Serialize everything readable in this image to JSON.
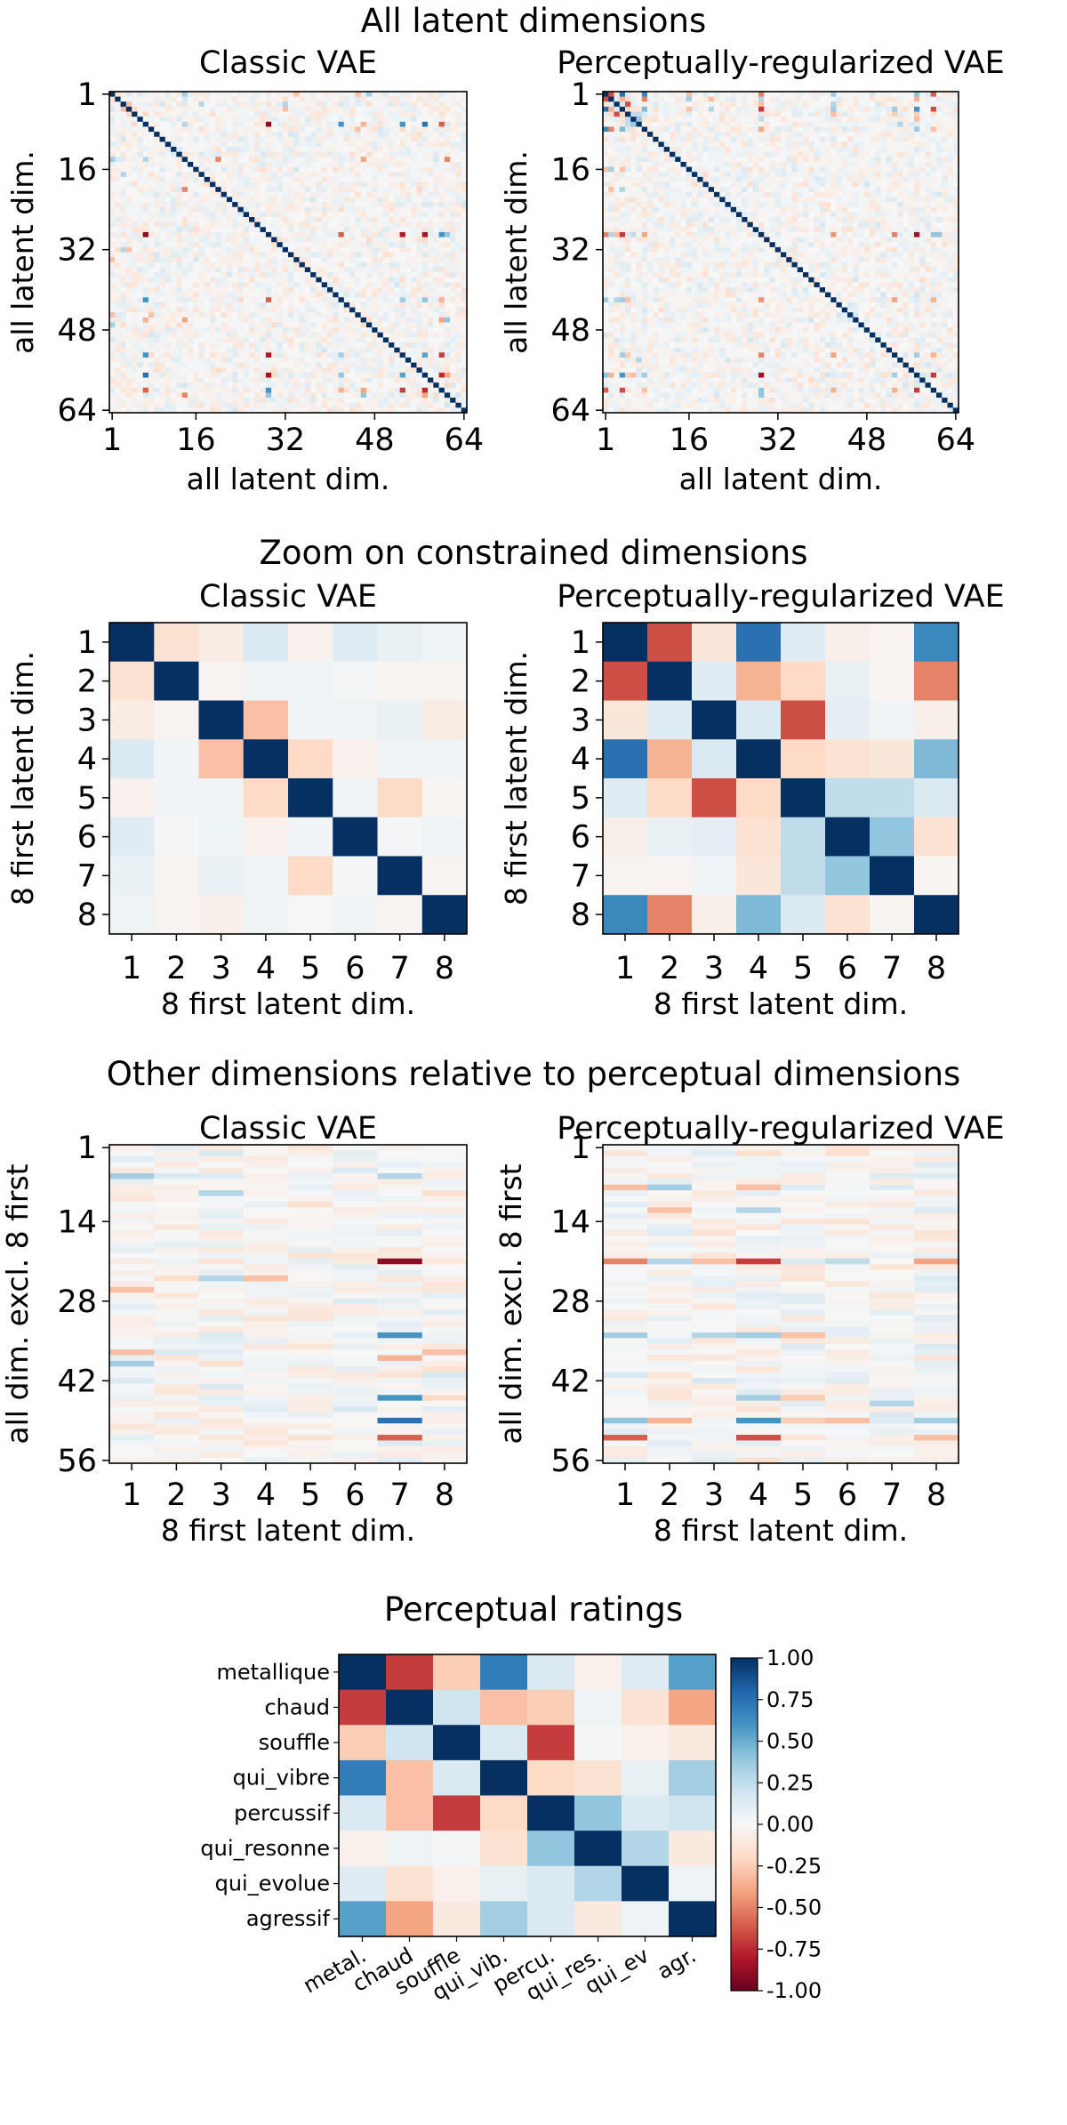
{
  "colormap": {
    "name": "RdBu",
    "min": -1,
    "max": 1,
    "stops": [
      "#67001f",
      "#b2182b",
      "#d6604d",
      "#f4a582",
      "#fddbc7",
      "#f7f7f7",
      "#d1e5f0",
      "#92c5de",
      "#4393c3",
      "#2166ac",
      "#053061"
    ]
  },
  "chart_data": [
    {
      "type": "heatmap",
      "title": "All latent dimensions",
      "panels": [
        {
          "title": "Classic VAE",
          "xlabel": "all latent dim.",
          "ylabel": "all latent dim.",
          "xticks": [
            "1",
            "16",
            "32",
            "48",
            "64"
          ],
          "yticks": [
            "1",
            "16",
            "32",
            "48",
            "64"
          ],
          "rows": 64,
          "cols": 64,
          "diagonal": 1,
          "notable_entries": [
            [
              29,
              42,
              -0.6
            ],
            [
              29,
              53,
              -0.8
            ],
            [
              29,
              57,
              -0.85
            ],
            [
              29,
              60,
              0.6
            ],
            [
              29,
              61,
              0.4
            ],
            [
              14,
              20,
              -0.5
            ],
            [
              14,
              46,
              -0.4
            ],
            [
              14,
              61,
              -0.5
            ],
            [
              20,
              14,
              -0.5
            ],
            [
              42,
              53,
              0.35
            ],
            [
              42,
              57,
              0.4
            ],
            [
              42,
              60,
              -0.35
            ],
            [
              46,
              60,
              -0.4
            ],
            [
              46,
              61,
              0.4
            ],
            [
              53,
              57,
              0.55
            ],
            [
              53,
              60,
              -0.7
            ],
            [
              57,
              60,
              -0.75
            ],
            [
              57,
              61,
              -0.4
            ]
          ]
        },
        {
          "title": "Perceptually-regularized VAE",
          "xlabel": "all latent dim.",
          "ylabel": "all latent dim.",
          "xticks": [
            "1",
            "16",
            "32",
            "48",
            "64"
          ],
          "yticks": [
            "1",
            "16",
            "32",
            "48",
            "64"
          ],
          "rows": 64,
          "cols": 64,
          "diagonal": 1,
          "notable_entries": [
            [
              29,
              42,
              -0.45
            ],
            [
              29,
              53,
              -0.6
            ],
            [
              29,
              57,
              -0.85
            ],
            [
              29,
              60,
              0.4
            ],
            [
              29,
              61,
              0.4
            ],
            [
              42,
              60,
              -0.35
            ],
            [
              53,
              57,
              0.35
            ],
            [
              53,
              60,
              -0.35
            ],
            [
              57,
              60,
              -0.6
            ],
            [
              53,
              29,
              -0.5
            ],
            [
              42,
              53,
              -0.4
            ],
            [
              57,
              60,
              -0.7
            ]
          ]
        }
      ]
    },
    {
      "type": "heatmap",
      "title": "Zoom on constrained dimensions",
      "panels": [
        {
          "title": "Classic VAE",
          "xlabel": "8 first latent dim.",
          "ylabel": "8 first latent dim.",
          "xticks": [
            "1",
            "2",
            "3",
            "4",
            "5",
            "6",
            "7",
            "8"
          ],
          "yticks": [
            "1",
            "2",
            "3",
            "4",
            "5",
            "6",
            "7",
            "8"
          ],
          "values": [
            [
              1,
              -0.15,
              -0.08,
              0.15,
              -0.04,
              0.12,
              0.07,
              0.05
            ],
            [
              -0.15,
              1,
              -0.03,
              0.03,
              0.03,
              0.02,
              -0.03,
              -0.03
            ],
            [
              -0.08,
              -0.03,
              1,
              -0.3,
              0.03,
              0.05,
              0.07,
              -0.08
            ],
            [
              0.15,
              0.03,
              -0.3,
              1,
              -0.2,
              -0.04,
              0.05,
              0.03
            ],
            [
              -0.04,
              0.03,
              0.03,
              -0.2,
              1,
              0.03,
              -0.2,
              -0.02
            ],
            [
              0.12,
              0.02,
              0.05,
              -0.04,
              0.03,
              1,
              0.02,
              0.05
            ],
            [
              0.07,
              -0.03,
              0.07,
              0.05,
              -0.2,
              0.02,
              1,
              -0.03
            ],
            [
              0.05,
              -0.03,
              -0.06,
              0.05,
              0.01,
              0.05,
              -0.03,
              1
            ]
          ]
        },
        {
          "title": "Perceptually-regularized VAE",
          "xlabel": "8 first latent dim.",
          "ylabel": "8 first latent dim.",
          "xticks": [
            "1",
            "2",
            "3",
            "4",
            "5",
            "6",
            "7",
            "8"
          ],
          "yticks": [
            "1",
            "2",
            "3",
            "4",
            "5",
            "6",
            "7",
            "8"
          ],
          "values": [
            [
              1,
              -0.65,
              -0.12,
              0.75,
              0.12,
              -0.06,
              -0.03,
              0.65
            ],
            [
              -0.65,
              1,
              0.12,
              -0.35,
              -0.2,
              0.08,
              -0.03,
              -0.5
            ],
            [
              -0.12,
              0.12,
              1,
              0.15,
              -0.65,
              0.1,
              0.03,
              -0.06
            ],
            [
              0.75,
              -0.35,
              0.15,
              1,
              -0.2,
              -0.15,
              -0.12,
              0.45
            ],
            [
              0.12,
              -0.2,
              -0.65,
              -0.2,
              1,
              0.25,
              0.25,
              0.15
            ],
            [
              -0.06,
              0.08,
              0.1,
              -0.15,
              0.25,
              1,
              0.4,
              -0.15
            ],
            [
              -0.03,
              -0.03,
              0.03,
              -0.12,
              0.25,
              0.4,
              1,
              -0.02
            ],
            [
              0.65,
              -0.5,
              -0.06,
              0.45,
              0.15,
              -0.15,
              -0.02,
              1
            ]
          ]
        }
      ]
    },
    {
      "type": "heatmap",
      "title": "Other dimensions relative to perceptual dimensions",
      "panels": [
        {
          "title": "Classic VAE",
          "xlabel": "8 first latent dim.",
          "ylabel": "all dim. excl. 8 first",
          "xticks": [
            "1",
            "2",
            "3",
            "4",
            "5",
            "6",
            "7",
            "8"
          ],
          "yticks": [
            "1",
            "14",
            "28",
            "42",
            "56"
          ],
          "rows": 56,
          "cols": 8,
          "notable_entries": [
            [
              6,
              1,
              0.35
            ],
            [
              6,
              7,
              0.3
            ],
            [
              9,
              3,
              0.3
            ],
            [
              21,
              7,
              -0.9
            ],
            [
              34,
              7,
              0.6
            ],
            [
              37,
              1,
              -0.3
            ],
            [
              37,
              8,
              -0.3
            ],
            [
              38,
              7,
              -0.35
            ],
            [
              39,
              1,
              0.35
            ],
            [
              45,
              7,
              0.6
            ],
            [
              49,
              7,
              0.75
            ],
            [
              52,
              7,
              -0.6
            ],
            [
              24,
              3,
              0.3
            ],
            [
              24,
              4,
              -0.3
            ],
            [
              26,
              1,
              -0.3
            ]
          ]
        },
        {
          "title": "Perceptually-regularized VAE",
          "xlabel": "8 first latent dim.",
          "ylabel": "all dim. excl. 8 first",
          "xticks": [
            "1",
            "2",
            "3",
            "4",
            "5",
            "6",
            "7",
            "8"
          ],
          "yticks": [
            "1",
            "14",
            "28",
            "42",
            "56"
          ],
          "rows": 56,
          "cols": 8,
          "notable_entries": [
            [
              8,
              1,
              -0.3
            ],
            [
              8,
              2,
              0.35
            ],
            [
              8,
              4,
              -0.3
            ],
            [
              12,
              2,
              -0.3
            ],
            [
              12,
              4,
              0.3
            ],
            [
              21,
              1,
              -0.5
            ],
            [
              21,
              2,
              0.3
            ],
            [
              21,
              3,
              -0.3
            ],
            [
              21,
              4,
              -0.7
            ],
            [
              21,
              5,
              0.15
            ],
            [
              21,
              6,
              0.25
            ],
            [
              21,
              8,
              -0.4
            ],
            [
              34,
              1,
              0.35
            ],
            [
              34,
              3,
              0.3
            ],
            [
              34,
              4,
              0.35
            ],
            [
              34,
              5,
              -0.3
            ],
            [
              45,
              4,
              0.35
            ],
            [
              45,
              5,
              -0.25
            ],
            [
              46,
              7,
              0.3
            ],
            [
              49,
              1,
              0.4
            ],
            [
              49,
              2,
              -0.35
            ],
            [
              49,
              4,
              0.6
            ],
            [
              49,
              5,
              -0.25
            ],
            [
              49,
              6,
              -0.3
            ],
            [
              49,
              8,
              0.35
            ],
            [
              52,
              1,
              -0.6
            ],
            [
              52,
              4,
              -0.65
            ],
            [
              52,
              8,
              -0.3
            ]
          ]
        }
      ]
    },
    {
      "type": "heatmap",
      "title": "Perceptual ratings",
      "row_labels": [
        "metallique",
        "chaud",
        "souffle",
        "qui_vibre",
        "percussif",
        "qui_resonne",
        "qui_evolue",
        "agressif"
      ],
      "col_labels": [
        "metal.",
        "chaud",
        "souffle",
        "qui_vib.",
        "percu.",
        "qui_res.",
        "qui_ev",
        "agr."
      ],
      "values": [
        [
          1,
          -0.7,
          -0.25,
          0.7,
          0.15,
          -0.05,
          0.12,
          0.55
        ],
        [
          -0.7,
          1,
          0.2,
          -0.3,
          -0.25,
          0.05,
          -0.15,
          -0.4
        ],
        [
          -0.25,
          0.2,
          1,
          0.15,
          -0.7,
          0.02,
          -0.05,
          -0.1
        ],
        [
          0.7,
          -0.3,
          0.15,
          1,
          -0.2,
          -0.15,
          0.08,
          0.35
        ],
        [
          0.15,
          -0.3,
          -0.7,
          -0.2,
          1,
          0.4,
          0.15,
          0.2
        ],
        [
          -0.05,
          0.05,
          0.02,
          -0.15,
          0.4,
          1,
          0.3,
          -0.1
        ],
        [
          0.12,
          -0.15,
          -0.05,
          0.08,
          0.15,
          0.3,
          1,
          0.05
        ],
        [
          0.55,
          -0.4,
          -0.1,
          0.35,
          0.15,
          -0.1,
          0.05,
          1
        ]
      ],
      "colorbar": {
        "range": [
          -1,
          1
        ],
        "ticks": [
          "1.00",
          "0.75",
          "0.50",
          "0.25",
          "0.00",
          "-0.25",
          "-0.50",
          "-0.75",
          "-1.00"
        ]
      }
    }
  ]
}
